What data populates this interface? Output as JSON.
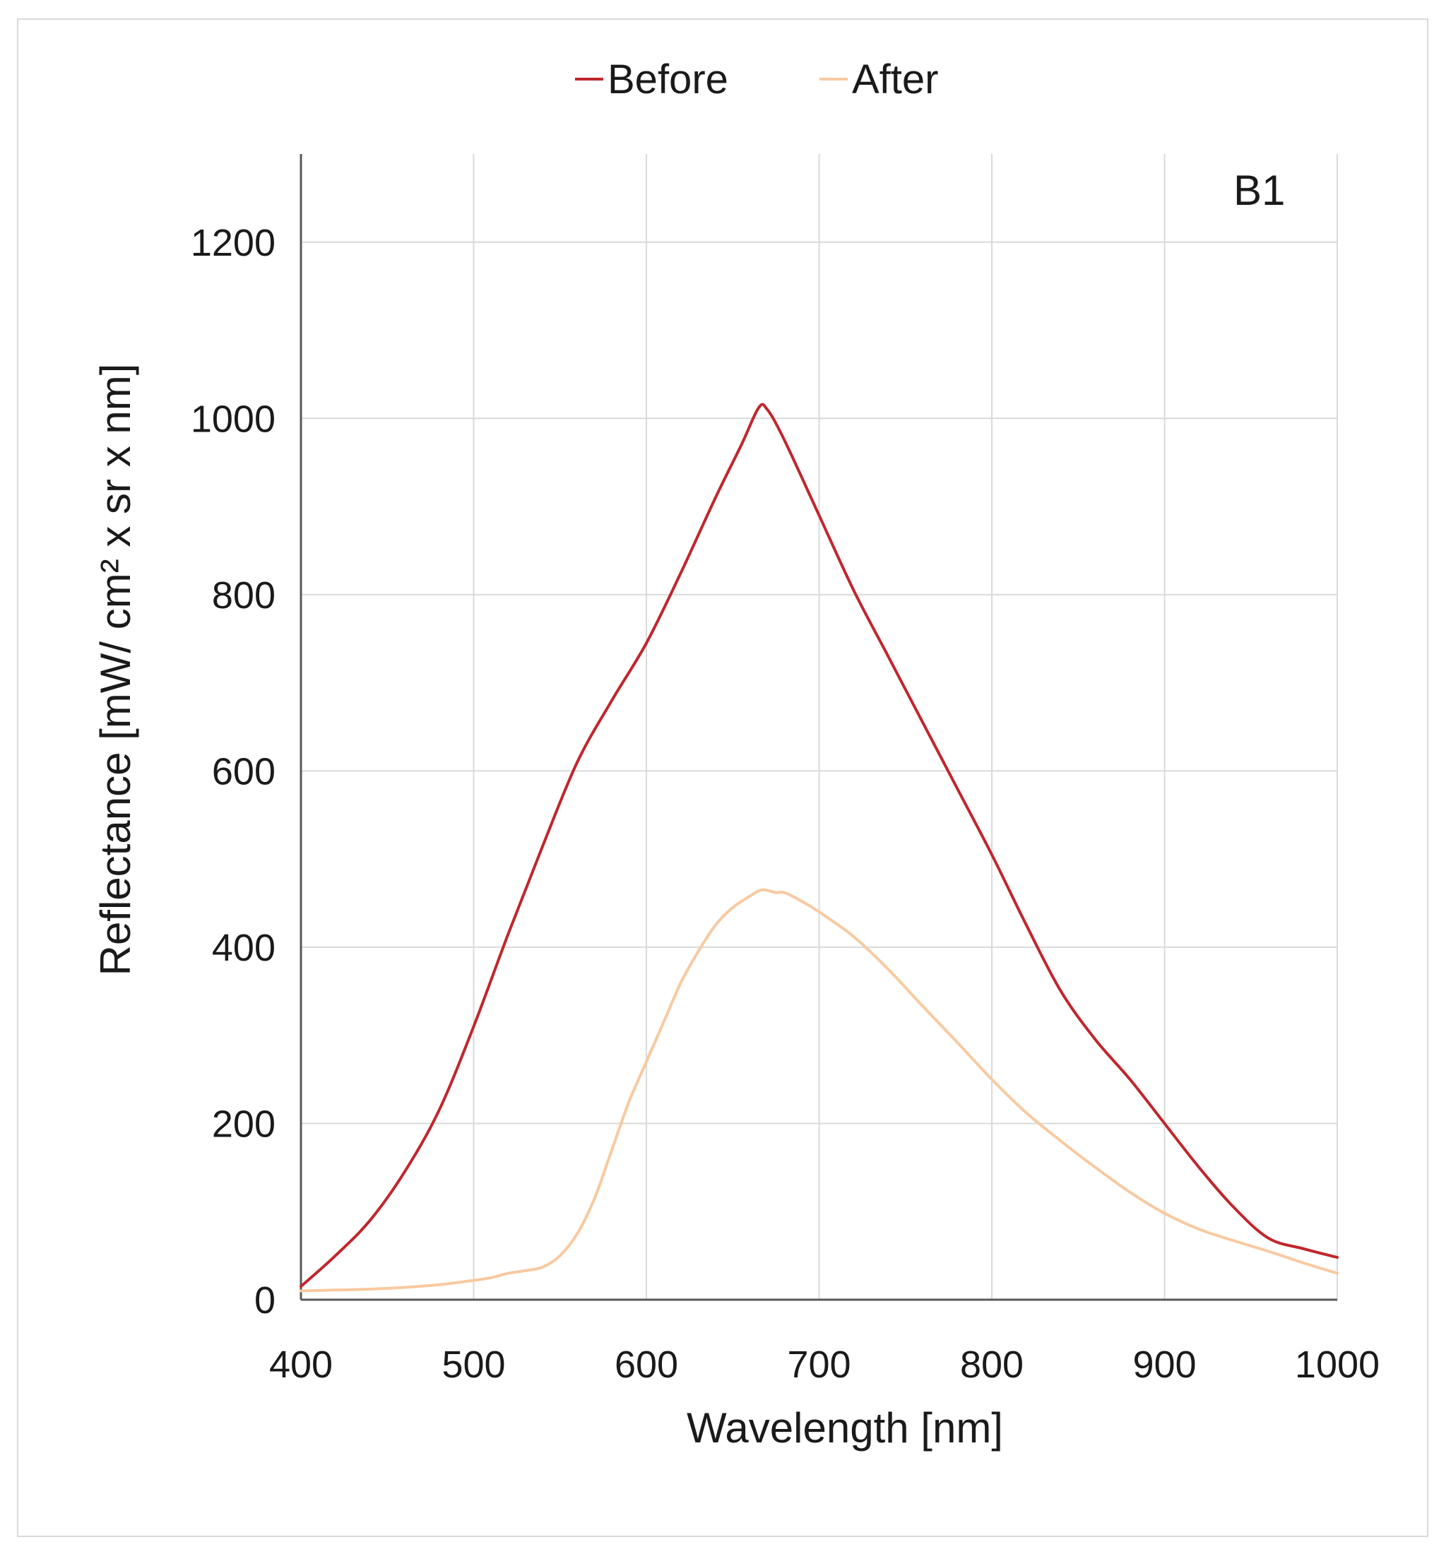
{
  "chart_data": {
    "type": "line",
    "annotation": "B1",
    "xlabel": "Wavelength [nm]",
    "ylabel": "Reflectance [mW/ cm² x sr x nm]",
    "xlim": [
      400,
      1000
    ],
    "ylim": [
      0,
      1300
    ],
    "xticks": [
      400,
      500,
      600,
      700,
      800,
      900,
      1000
    ],
    "yticks": [
      0,
      200,
      400,
      600,
      800,
      1000,
      1200
    ],
    "x_tick_labels": [
      "400",
      "500",
      "600",
      "700",
      "800",
      "900",
      "1000"
    ],
    "y_tick_labels": [
      "0",
      "200",
      "400",
      "600",
      "800",
      "1000",
      "1200"
    ],
    "grid": true,
    "legend_position": "top-center",
    "series": [
      {
        "name": "Before",
        "color": "#c0262c",
        "x": [
          400,
          420,
          440,
          460,
          480,
          500,
          520,
          540,
          560,
          580,
          600,
          620,
          640,
          655,
          665,
          670,
          680,
          700,
          720,
          740,
          760,
          780,
          800,
          820,
          840,
          860,
          880,
          900,
          920,
          940,
          960,
          980,
          1000
        ],
        "y": [
          15,
          50,
          90,
          145,
          215,
          310,
          415,
          515,
          610,
          680,
          745,
          825,
          910,
          970,
          1012,
          1010,
          975,
          890,
          805,
          730,
          655,
          580,
          505,
          425,
          350,
          295,
          250,
          200,
          150,
          105,
          70,
          58,
          48
        ]
      },
      {
        "name": "After",
        "color": "#f8c9a0",
        "x": [
          400,
          420,
          440,
          460,
          480,
          500,
          510,
          520,
          530,
          540,
          550,
          560,
          570,
          580,
          590,
          600,
          610,
          620,
          630,
          640,
          650,
          660,
          667,
          675,
          680,
          690,
          700,
          720,
          740,
          760,
          780,
          800,
          820,
          840,
          860,
          880,
          900,
          920,
          940,
          960,
          980,
          1000
        ],
        "y": [
          10,
          11,
          12,
          14,
          17,
          22,
          25,
          30,
          33,
          37,
          50,
          75,
          115,
          170,
          225,
          270,
          315,
          360,
          395,
          425,
          445,
          458,
          465,
          462,
          462,
          452,
          440,
          412,
          375,
          333,
          292,
          250,
          212,
          180,
          150,
          122,
          98,
          80,
          67,
          55,
          42,
          30
        ]
      }
    ]
  }
}
